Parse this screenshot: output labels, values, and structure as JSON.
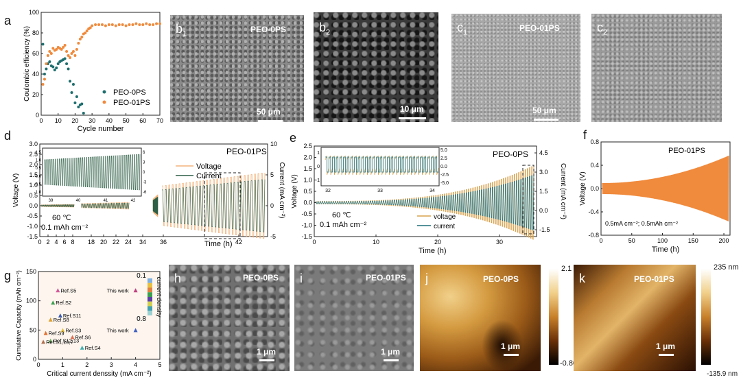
{
  "panels": {
    "a": {
      "label": "a"
    },
    "b1": {
      "label": "b",
      "sub": "1",
      "title": "PEO-0PS",
      "scale": "50 μm"
    },
    "b2": {
      "label": "b",
      "sub": "2",
      "scale": "10 μm"
    },
    "c1": {
      "label": "c",
      "sub": "1",
      "title": "PEO-01PS",
      "scale": "50 μm"
    },
    "c2": {
      "label": "c",
      "sub": "2"
    },
    "d": {
      "label": "d"
    },
    "e": {
      "label": "e"
    },
    "f": {
      "label": "f"
    },
    "g": {
      "label": "g"
    },
    "h": {
      "label": "h",
      "title": "PEO-0PS",
      "scale": "1 μm"
    },
    "i": {
      "label": "i",
      "title": "PEO-01PS",
      "scale": "1 μm"
    },
    "j": {
      "label": "j",
      "title": "PEO-0PS",
      "scale": "1 μm",
      "cb_top": "2.1 μm",
      "cb_bottom": "-0.80 μm"
    },
    "k": {
      "label": "k",
      "title": "PEO-01PS",
      "scale": "1 μm",
      "cb_top": "235 nm",
      "cb_bottom": "-135.9 nm"
    }
  },
  "chart_data": [
    {
      "id": "a",
      "type": "scatter",
      "xlabel": "Cycle number",
      "ylabel": "Coulombic efficiency (%)",
      "xlim": [
        0,
        70
      ],
      "ylim": [
        0,
        100
      ],
      "xticks": [
        "0",
        "10",
        "20",
        "30",
        "40",
        "50",
        "60",
        "70"
      ],
      "yticks": [
        "0",
        "20",
        "40",
        "60",
        "80",
        "100"
      ],
      "series": [
        {
          "name": "PEO-0PS",
          "color": "#1f6e6e",
          "x": [
            1,
            2,
            3,
            4,
            5,
            6,
            7,
            8,
            9,
            10,
            11,
            12,
            13,
            14,
            15,
            16,
            17,
            18,
            19,
            20,
            21,
            22,
            23,
            24,
            25
          ],
          "y": [
            69,
            40,
            45,
            50,
            52,
            48,
            47,
            44,
            46,
            50,
            52,
            53,
            54,
            55,
            50,
            45,
            33,
            22,
            30,
            12,
            18,
            8,
            10,
            11,
            2
          ]
        },
        {
          "name": "PEO-01PS",
          "color": "#f08a3c",
          "x": [
            1,
            2,
            3,
            4,
            5,
            6,
            7,
            8,
            9,
            10,
            11,
            12,
            13,
            14,
            15,
            16,
            17,
            18,
            19,
            20,
            21,
            22,
            23,
            24,
            25,
            26,
            27,
            28,
            29,
            30,
            32,
            34,
            36,
            38,
            40,
            42,
            44,
            46,
            48,
            50,
            52,
            54,
            56,
            58,
            60,
            62,
            64,
            66,
            68,
            70
          ],
          "y": [
            30,
            35,
            50,
            58,
            62,
            60,
            65,
            63,
            64,
            66,
            65,
            64,
            66,
            68,
            62,
            58,
            56,
            60,
            62,
            58,
            64,
            70,
            74,
            76,
            79,
            80,
            82,
            84,
            85,
            87,
            88,
            88,
            88,
            87,
            88,
            88,
            87,
            88,
            88,
            87,
            88,
            88,
            89,
            88,
            88,
            89,
            88,
            88,
            89,
            89
          ]
        }
      ],
      "legend": "bottom-right"
    },
    {
      "id": "d",
      "type": "line",
      "title": "PEO-01PS",
      "xlabel": "Time (h)",
      "ylabel": "Voltage (V)",
      "y2label": "Current (mA cm⁻²)",
      "xticks": [
        "0",
        "2",
        "4",
        "6",
        "8",
        "18",
        "20",
        "22",
        "24",
        "34",
        "36",
        "42"
      ],
      "yticks": [
        "-1.5",
        "-1.0",
        "-0.5",
        "0.0",
        "0.5",
        "1.0",
        "1.5",
        "2.0",
        "2.5",
        "3.0"
      ],
      "y2ticks": [
        "-5",
        "0",
        "5",
        "10"
      ],
      "annotation": "60 ℃",
      "annotation2": "0.1 mAh cm⁻²",
      "series": [
        {
          "name": "Voltage",
          "color": "#f2b27a"
        },
        {
          "name": "Current",
          "color": "#2d5e46"
        }
      ],
      "inset": {
        "xticks": [
          "39",
          "40",
          "41",
          "42"
        ],
        "yticks": [
          "-1.0",
          "-0.5",
          "0.0",
          "0.5",
          "1.0",
          "1.5"
        ],
        "y2ticks": [
          "-6",
          "-3",
          "0",
          "3",
          "6"
        ]
      }
    },
    {
      "id": "e",
      "type": "line",
      "title": "PEO-0PS",
      "xlabel": "Time (h)",
      "ylabel": "Voltage (V)",
      "y2label": "Current (mA cm⁻²)",
      "xticks": [
        "0",
        "10",
        "20",
        "30"
      ],
      "yticks": [
        "-1.5",
        "-1.0",
        "-0.5",
        "0.0",
        "0.5",
        "1.0",
        "1.5",
        "2.0",
        "2.5"
      ],
      "y2ticks": [
        "-1.5",
        "0.0",
        "1.5",
        "3.0",
        "4.5"
      ],
      "annotation": "60 ℃",
      "annotation2": "0.1 mAh cm⁻²",
      "series": [
        {
          "name": "voltage",
          "color": "#d9a24e"
        },
        {
          "name": "current",
          "color": "#1f6f7a"
        }
      ],
      "inset": {
        "xticks": [
          "32",
          "33",
          "34"
        ],
        "yticks": [
          "-1",
          "0",
          "1"
        ],
        "y2ticks": [
          "-5.0",
          "-2.5",
          "0.0",
          "2.5",
          "5.0"
        ]
      }
    },
    {
      "id": "f",
      "type": "line",
      "title": "PEO-01PS",
      "xlabel": "Time (h)",
      "ylabel": "Voltage (V)",
      "xticks": [
        "0",
        "50",
        "100",
        "150",
        "200"
      ],
      "yticks": [
        "-0.8",
        "-0.4",
        "0.0",
        "0.4",
        "0.8"
      ],
      "annotation": "0.5mA cm⁻²; 0.5mAh cm⁻²",
      "series": [
        {
          "name": "Voltage",
          "color": "#f08a3c"
        }
      ]
    },
    {
      "id": "g",
      "type": "scatter",
      "xlabel": "Critical current denssity (mA cm⁻²)",
      "ylabel": "Cumulative Capacity (mAh cm⁻²)",
      "xlim": [
        0,
        5
      ],
      "ylim": [
        0,
        150
      ],
      "xticks": [
        "0",
        "1",
        "2",
        "3",
        "4",
        "5"
      ],
      "yticks": [
        "0",
        "50",
        "100",
        "150"
      ],
      "colorbar": {
        "label": "current density",
        "top": "0.1",
        "bottom": "0.8"
      },
      "points": [
        {
          "label": "Ref.S5",
          "x": 0.8,
          "y": 118,
          "color": "#d45a9a"
        },
        {
          "label": "Ref.S2",
          "x": 0.6,
          "y": 97,
          "color": "#3aa050"
        },
        {
          "label": "Ref.S11",
          "x": 0.9,
          "y": 75,
          "color": "#3a5ab0"
        },
        {
          "label": "Ref.S8",
          "x": 0.5,
          "y": 68,
          "color": "#e0a030"
        },
        {
          "label": "Ref.S3",
          "x": 1.0,
          "y": 50,
          "color": "#e6c040"
        },
        {
          "label": "Ref.S9",
          "x": 0.3,
          "y": 45,
          "color": "#e07030"
        },
        {
          "label": "Ref.S6",
          "x": 1.4,
          "y": 38,
          "color": "#e07050"
        },
        {
          "label": "Ref.S12,13",
          "x": 0.5,
          "y": 32,
          "color": "#70b060"
        },
        {
          "label": "Ref.S1,10,7",
          "x": 0.2,
          "y": 30,
          "color": "#b07050"
        },
        {
          "label": "Ref.S4",
          "x": 1.8,
          "y": 20,
          "color": "#40b0b0"
        },
        {
          "label": "This work",
          "x": 4.0,
          "y": 118,
          "color": "#c04080"
        },
        {
          "label": "This work",
          "x": 4.0,
          "y": 50,
          "color": "#4060c0"
        }
      ]
    }
  ]
}
